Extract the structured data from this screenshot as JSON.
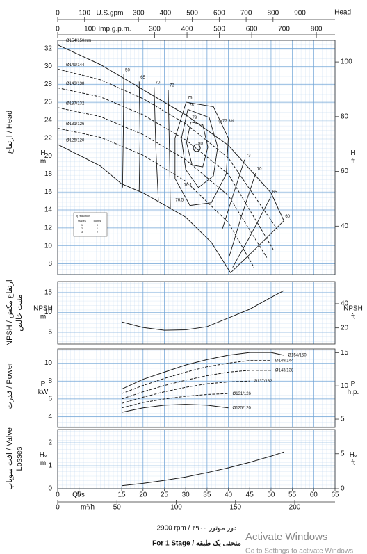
{
  "header": {
    "corner_label": "Head"
  },
  "top_axes": [
    {
      "label": "U.S.gpm",
      "xlim": [
        0,
        1030.3
      ],
      "xticks": [
        0,
        100,
        300,
        400,
        500,
        600,
        700,
        800,
        900
      ]
    },
    {
      "label": "Imp.g.p.m.",
      "xlim": [
        0,
        857.8
      ],
      "xticks": [
        0,
        100,
        300,
        400,
        500,
        600,
        700,
        800
      ]
    }
  ],
  "bottom_axes": [
    {
      "label": "Ql/s",
      "xlim": [
        0,
        65
      ],
      "xticks": [
        0,
        5,
        15,
        20,
        25,
        30,
        35,
        40,
        45,
        50,
        55,
        60,
        65
      ]
    },
    {
      "label": "m³/h",
      "xlim": [
        0,
        234
      ],
      "xticks": [
        0,
        50,
        100,
        150,
        200
      ]
    }
  ],
  "chart_data": [
    {
      "type": "line",
      "side_label": [
        "ارتفاع / Head"
      ],
      "y_unit": [
        "H",
        "m"
      ],
      "y2_unit": [
        "H",
        "ft"
      ],
      "xlim": [
        0,
        65
      ],
      "ylim": [
        6.8,
        32.9
      ],
      "yticks": [
        8,
        10,
        12,
        14,
        16,
        18,
        20,
        22,
        24,
        26,
        28,
        30,
        32
      ],
      "y2lim": [
        22.3,
        107.9
      ],
      "y2ticks": [
        40,
        60,
        80,
        100
      ],
      "grid": true,
      "series": [
        {
          "name": "Ø154/150mm",
          "color": "#1a1a1a",
          "dash": false,
          "x": [
            0,
            10,
            20,
            30,
            40,
            50,
            53
          ],
          "values": [
            32.4,
            30.2,
            27.4,
            24.6,
            21.2,
            15.9,
            12.8
          ]
        },
        {
          "name": "Ø149/144",
          "color": "#1a1a1a",
          "dash": true,
          "x": [
            0,
            10,
            20,
            30,
            40,
            51.5
          ],
          "values": [
            29.7,
            28.5,
            26.4,
            23.6,
            19.8,
            11.8
          ]
        },
        {
          "name": "Ø143/138",
          "color": "#1a1a1a",
          "dash": true,
          "x": [
            0,
            10,
            20,
            30,
            40,
            50.5
          ],
          "values": [
            27.6,
            26.6,
            24.6,
            21.8,
            18.0,
            9.6
          ]
        },
        {
          "name": "Ø137/132",
          "color": "#1a1a1a",
          "dash": true,
          "x": [
            0,
            10,
            20,
            30,
            40,
            49
          ],
          "values": [
            25.4,
            24.4,
            22.4,
            19.6,
            15.6,
            8.7
          ]
        },
        {
          "name": "Ø131/126",
          "color": "#1a1a1a",
          "dash": true,
          "x": [
            0,
            10,
            20,
            30,
            40,
            46
          ],
          "values": [
            23.1,
            22.1,
            20.1,
            17.2,
            12.6,
            7.6
          ]
        },
        {
          "name": "Ø125/120",
          "color": "#1a1a1a",
          "dash": false,
          "x": [
            0,
            10,
            15,
            20,
            30,
            36,
            40.5
          ],
          "values": [
            21.3,
            18.9,
            16.9,
            15.9,
            13.2,
            10.4,
            7.0
          ]
        }
      ],
      "efficiency": [
        {
          "name": "50",
          "x": [
            15.5,
            15.4,
            15.2
          ],
          "y": [
            29.1,
            23,
            16.5
          ]
        },
        {
          "name": "65",
          "x": [
            19.1,
            19.3,
            19.1
          ],
          "y": [
            28.3,
            22,
            16.1
          ]
        },
        {
          "name": "70",
          "x": [
            22.6,
            23.0,
            23.6
          ],
          "y": [
            27.7,
            21,
            15.0
          ]
        },
        {
          "name": "73",
          "x": [
            25.9,
            26.2,
            26.4
          ],
          "y": [
            27.4,
            20.5,
            14.2
          ]
        },
        {
          "name": "76",
          "x": [
            30.1,
            27.5,
            27.5,
            31,
            36,
            39.5,
            40,
            36.5,
            30.1
          ],
          "y": [
            26.0,
            22,
            17.5,
            14.5,
            14.8,
            18,
            22,
            25.5,
            26.0
          ]
        },
        {
          "name": "78",
          "x": [
            30.5,
            29,
            30,
            33,
            36.5,
            37.5,
            35.5,
            30.5
          ],
          "y": [
            25.2,
            22,
            18.5,
            16.5,
            17.8,
            21,
            24.3,
            25.2
          ]
        },
        {
          "name": "79",
          "x": [
            31.2,
            30.2,
            31.5,
            34,
            35.2,
            34,
            31.2
          ],
          "y": [
            23.8,
            21.5,
            19,
            18.8,
            21,
            23.5,
            23.8
          ]
        },
        {
          "name": "80",
          "x": [
            32.6
          ],
          "y": [
            20.9
          ]
        },
        {
          "name": "73",
          "x": [
            43.8,
            41,
            38.6
          ],
          "y": [
            19.6,
            15.5,
            11.9
          ]
        },
        {
          "name": "70",
          "x": [
            46.4,
            43,
            40.2
          ],
          "y": [
            18.1,
            13.2,
            8.8
          ]
        },
        {
          "name": "65",
          "x": [
            50,
            45,
            41
          ],
          "y": [
            15.5,
            11,
            7.6
          ]
        },
        {
          "name": "60",
          "x": [
            53,
            46,
            40.5
          ],
          "y": [
            12.8,
            9.5,
            7.0
          ]
        }
      ],
      "annotations": [
        {
          "text": "η=77.3%",
          "x": 37.5,
          "y": 23.9
        },
        {
          "text": "76.1",
          "x": 29.6,
          "y": 16.8
        },
        {
          "text": "76.5",
          "x": 27.6,
          "y": 15.1
        }
      ],
      "reduction_table": {
        "title": "η reduction",
        "columns": [
          "stages",
          "points"
        ],
        "rows": [
          [
            "1",
            "0"
          ],
          [
            "2",
            "1"
          ],
          [
            "3",
            "2"
          ]
        ]
      }
    },
    {
      "type": "line",
      "side_label": [
        "NPSH / ارتفاع مکش",
        "مثبت خالص"
      ],
      "y_unit": [
        "NPSH",
        "m"
      ],
      "y2_unit": [
        "NPSH",
        "ft"
      ],
      "xlim": [
        0,
        65
      ],
      "ylim": [
        2,
        17.8
      ],
      "yticks": [
        5,
        10,
        15
      ],
      "y2lim": [
        6.56,
        58.4
      ],
      "y2ticks": [
        20,
        40
      ],
      "grid": true,
      "series": [
        {
          "name": "NPSH",
          "color": "#1a1a1a",
          "dash": false,
          "x": [
            15,
            20,
            25,
            30,
            35,
            40,
            45,
            50,
            53
          ],
          "values": [
            7.6,
            6.2,
            5.5,
            5.6,
            6.4,
            8.6,
            10.8,
            13.8,
            15.5
          ]
        }
      ]
    },
    {
      "type": "line",
      "side_label": [
        "قدرت / Power"
      ],
      "y_unit": [
        "P",
        "kW"
      ],
      "y2_unit": [
        "P",
        "h.p."
      ],
      "xlim": [
        0,
        65
      ],
      "ylim": [
        2.8,
        11.6
      ],
      "yticks": [
        4,
        6,
        8,
        10
      ],
      "y2lim": [
        3.75,
        15.56
      ],
      "y2ticks": [
        5,
        10,
        15
      ],
      "grid": true,
      "series": [
        {
          "name": "Ø154/150",
          "color": "#1a1a1a",
          "dash": false,
          "x": [
            15,
            20,
            25,
            30,
            35,
            40,
            45,
            50,
            53
          ],
          "values": [
            7.1,
            8.2,
            9.0,
            9.8,
            10.4,
            10.9,
            11.2,
            11.2,
            10.9
          ]
        },
        {
          "name": "Ø149/144",
          "color": "#1a1a1a",
          "dash": true,
          "x": [
            15,
            20,
            25,
            30,
            35,
            40,
            45,
            50
          ],
          "values": [
            6.6,
            7.5,
            8.3,
            9.0,
            9.6,
            10.0,
            10.3,
            10.3
          ]
        },
        {
          "name": "Ø143/138",
          "color": "#1a1a1a",
          "dash": true,
          "x": [
            15,
            20,
            25,
            30,
            35,
            40,
            45,
            50
          ],
          "values": [
            6.0,
            6.8,
            7.5,
            8.1,
            8.6,
            9.0,
            9.2,
            9.2
          ]
        },
        {
          "name": "Ø137/132",
          "color": "#1a1a1a",
          "dash": true,
          "x": [
            15,
            20,
            25,
            30,
            35,
            40,
            45
          ],
          "values": [
            5.5,
            6.2,
            6.8,
            7.3,
            7.7,
            7.9,
            8.0
          ]
        },
        {
          "name": "Ø131/126",
          "color": "#1a1a1a",
          "dash": true,
          "x": [
            15,
            20,
            25,
            30,
            35,
            40
          ],
          "values": [
            5.0,
            5.6,
            6.0,
            6.3,
            6.5,
            6.6
          ]
        },
        {
          "name": "Ø125/120",
          "color": "#1a1a1a",
          "dash": false,
          "x": [
            15,
            20,
            25,
            30,
            35,
            40
          ],
          "values": [
            4.5,
            5.0,
            5.3,
            5.4,
            5.3,
            5.0
          ]
        }
      ]
    },
    {
      "type": "line",
      "side_label": [
        "افت سوپاپ / Valve",
        "Losses"
      ],
      "y_unit": [
        "Hᵥ",
        "m"
      ],
      "y2_unit": [
        "Hᵥ",
        "ft"
      ],
      "xlim": [
        0,
        65
      ],
      "ylim": [
        0,
        2.58
      ],
      "yticks": [
        0,
        1,
        2
      ],
      "y2lim": [
        0,
        8.46
      ],
      "y2ticks": [
        0,
        5
      ],
      "grid": true,
      "series": [
        {
          "name": "Hv",
          "color": "#1a1a1a",
          "dash": false,
          "x": [
            15,
            20,
            25,
            30,
            35,
            40,
            45,
            50,
            53
          ],
          "values": [
            0.13,
            0.23,
            0.36,
            0.51,
            0.7,
            0.91,
            1.15,
            1.42,
            1.6
          ]
        }
      ]
    }
  ],
  "footer": {
    "speed": "2900 rpm / دور موتور ۲۹۰۰",
    "stage": "For 1 Stage / منحنی یک طبقه"
  },
  "watermark": {
    "title": "Activate Windows",
    "subtitle": "Go to Settings to activate Windows."
  }
}
